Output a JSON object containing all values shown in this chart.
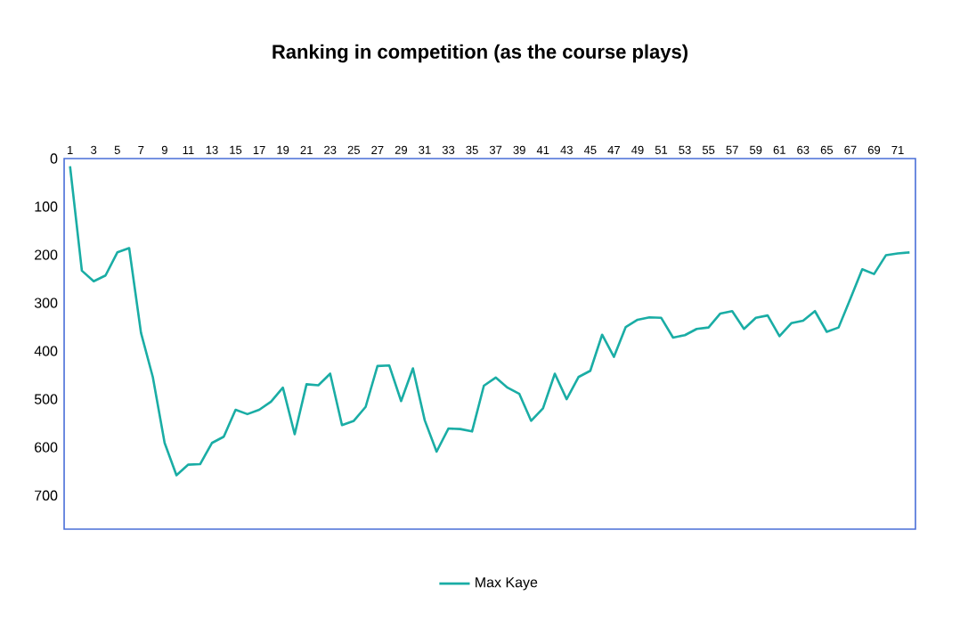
{
  "chart_data": {
    "type": "line",
    "title": "Ranking in competition (as the course plays)",
    "categories": [
      "1",
      null,
      "3",
      null,
      "5",
      null,
      "7",
      null,
      "9",
      null,
      "11",
      null,
      "13",
      null,
      "15",
      null,
      "17",
      null,
      "19",
      null,
      "21",
      null,
      "23",
      null,
      "25",
      null,
      "27",
      null,
      "29",
      null,
      "31",
      null,
      "33",
      null,
      "35",
      null,
      "37",
      null,
      "39",
      null,
      "41",
      null,
      "43",
      null,
      "45",
      null,
      "47",
      null,
      "49",
      null,
      "51",
      null,
      "53",
      null,
      "55",
      null,
      "57",
      null,
      "59",
      null,
      "61",
      null,
      "63",
      null,
      "65",
      null,
      "67",
      null,
      "69",
      null,
      "71",
      null
    ],
    "series": [
      {
        "name": "Max Kaye",
        "color": "#1aada5",
        "values": [
          16,
          233,
          255,
          243,
          195,
          186,
          362,
          454,
          591,
          658,
          636,
          635,
          591,
          578,
          522,
          531,
          522,
          505,
          476,
          573,
          469,
          471,
          447,
          554,
          545,
          516,
          431,
          430,
          504,
          436,
          544,
          609,
          561,
          562,
          567,
          472,
          455,
          476,
          489,
          545,
          519,
          447,
          500,
          454,
          441,
          366,
          412,
          350,
          335,
          330,
          331,
          372,
          367,
          354,
          351,
          322,
          317,
          354,
          331,
          326,
          369,
          342,
          337,
          317,
          360,
          351,
          291,
          230,
          240,
          201,
          197,
          195
        ]
      }
    ],
    "ylim": [
      770,
      0
    ],
    "yticks": [
      0,
      100,
      200,
      300,
      400,
      500,
      600,
      700
    ],
    "legend": "bottom"
  }
}
